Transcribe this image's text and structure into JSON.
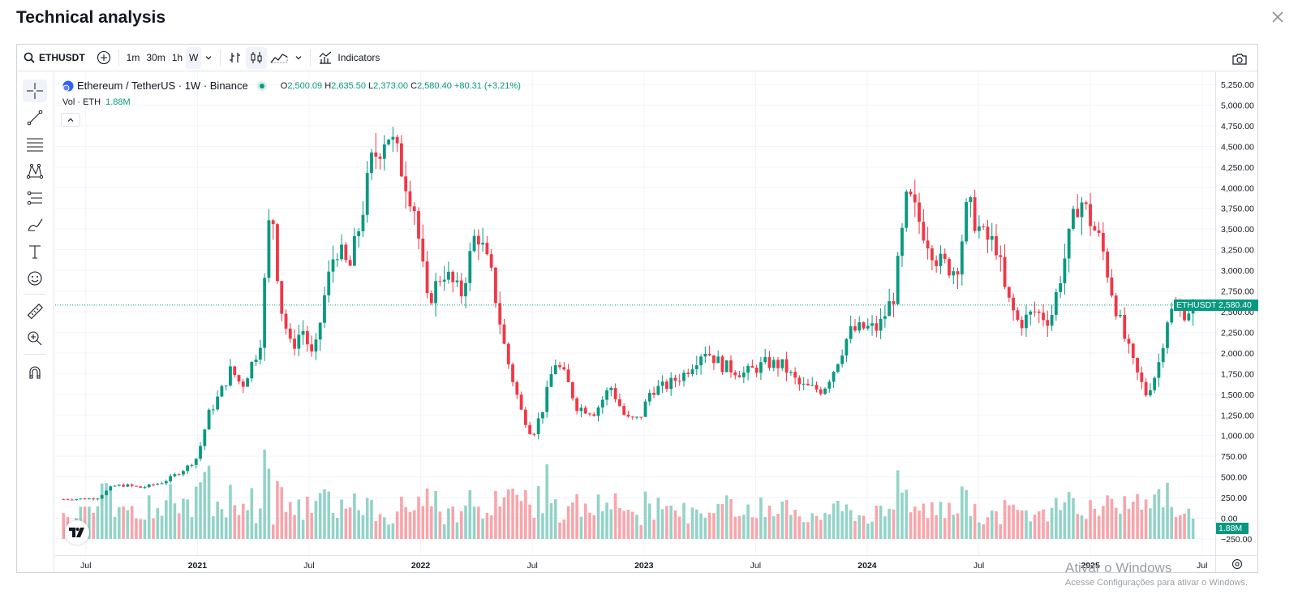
{
  "modal": {
    "title": "Technical analysis"
  },
  "toolbar": {
    "symbol": "ETHUSDT",
    "intervals": [
      "1m",
      "30m",
      "1h",
      "W"
    ],
    "active_interval": "W",
    "indicators_label": "Indicators"
  },
  "left_tools": [
    "crosshair-icon",
    "trend-line-icon",
    "fib-icon",
    "pattern-icon",
    "forecast-icon",
    "brush-icon",
    "text-icon",
    "emoji-icon",
    "ruler-icon",
    "zoom-in-icon",
    "magnet-icon"
  ],
  "legend": {
    "symbol_line": "Ethereum / TetherUS · 1W · Binance",
    "o_label": "O",
    "o_value": "2,500.09",
    "h_label": "H",
    "h_value": "2,635.50",
    "l_label": "L",
    "l_value": "2,373.00",
    "c_label": "C",
    "c_value": "2,580.40",
    "change": "+80.31 (+3.21%)",
    "vol_label": "Vol · ETH",
    "vol_value": "1.88M"
  },
  "price_tag": {
    "symbol": "ETHUSDT",
    "price": "2,580.40"
  },
  "volume_tag": "1.88M",
  "colors": {
    "up": "#089981",
    "down": "#f23645",
    "vol_up": "#93d3c8",
    "vol_down": "#f8a5ab"
  },
  "watermark": {
    "line1": "Ativar o Windows",
    "line2": "Acesse Configurações para ativar o Windows."
  },
  "chart_data": {
    "type": "candlestick",
    "price_axis": [
      "5,250.00",
      "5,000.00",
      "4,750.00",
      "4,500.00",
      "4,250.00",
      "4,000.00",
      "3,750.00",
      "3,500.00",
      "3,250.00",
      "3,000.00",
      "2,750.00",
      "2,500.00",
      "2,250.00",
      "2,000.00",
      "1,750.00",
      "1,500.00",
      "1,250.00",
      "1,000.00",
      "750.00",
      "500.00",
      "250.00",
      "0.00",
      "−250.00"
    ],
    "ylim": [
      -250,
      5250
    ],
    "time_axis": [
      "Jul",
      "2021",
      "Jul",
      "2022",
      "Jul",
      "2023",
      "Jul",
      "2024",
      "Jul",
      "2025",
      "Jul"
    ],
    "time_axis_bold": [
      false,
      true,
      false,
      true,
      false,
      true,
      false,
      true,
      false,
      true,
      false
    ],
    "x_range": [
      "2020-06",
      "2025-07"
    ],
    "weekly_close_keypoints": [
      [
        2020.4,
        230
      ],
      [
        2020.55,
        240
      ],
      [
        2020.62,
        390
      ],
      [
        2020.68,
        400
      ],
      [
        2020.75,
        370
      ],
      [
        2020.85,
        440
      ],
      [
        2020.95,
        610
      ],
      [
        2021.0,
        740
      ],
      [
        2021.05,
        1260
      ],
      [
        2021.1,
        1500
      ],
      [
        2021.15,
        1800
      ],
      [
        2021.2,
        1600
      ],
      [
        2021.28,
        2100
      ],
      [
        2021.33,
        3900
      ],
      [
        2021.37,
        2600
      ],
      [
        2021.42,
        2050
      ],
      [
        2021.47,
        2300
      ],
      [
        2021.52,
        1900
      ],
      [
        2021.57,
        2700
      ],
      [
        2021.62,
        3300
      ],
      [
        2021.68,
        3000
      ],
      [
        2021.73,
        3600
      ],
      [
        2021.78,
        4300
      ],
      [
        2021.85,
        4700
      ],
      [
        2021.92,
        4200
      ],
      [
        2021.97,
        3800
      ],
      [
        2022.03,
        2600
      ],
      [
        2022.1,
        3000
      ],
      [
        2022.18,
        2700
      ],
      [
        2022.25,
        3500
      ],
      [
        2022.32,
        2900
      ],
      [
        2022.38,
        2000
      ],
      [
        2022.45,
        1300
      ],
      [
        2022.5,
        1000
      ],
      [
        2022.55,
        1350
      ],
      [
        2022.6,
        1900
      ],
      [
        2022.65,
        1700
      ],
      [
        2022.7,
        1350
      ],
      [
        2022.78,
        1280
      ],
      [
        2022.85,
        1600
      ],
      [
        2022.92,
        1200
      ],
      [
        2022.98,
        1200
      ],
      [
        2023.03,
        1550
      ],
      [
        2023.1,
        1600
      ],
      [
        2023.18,
        1750
      ],
      [
        2023.27,
        2050
      ],
      [
        2023.35,
        1850
      ],
      [
        2023.45,
        1750
      ],
      [
        2023.55,
        1880
      ],
      [
        2023.62,
        1850
      ],
      [
        2023.7,
        1600
      ],
      [
        2023.8,
        1550
      ],
      [
        2023.85,
        1800
      ],
      [
        2023.92,
        2250
      ],
      [
        2023.98,
        2300
      ],
      [
        2024.05,
        2300
      ],
      [
        2024.12,
        2700
      ],
      [
        2024.18,
        3900
      ],
      [
        2024.25,
        3500
      ],
      [
        2024.32,
        3100
      ],
      [
        2024.4,
        3000
      ],
      [
        2024.45,
        3800
      ],
      [
        2024.52,
        3400
      ],
      [
        2024.58,
        3300
      ],
      [
        2024.62,
        2700
      ],
      [
        2024.68,
        2350
      ],
      [
        2024.75,
        2500
      ],
      [
        2024.82,
        2400
      ],
      [
        2024.88,
        3100
      ],
      [
        2024.95,
        3900
      ],
      [
        2025.0,
        3600
      ],
      [
        2025.05,
        3300
      ],
      [
        2025.1,
        2700
      ],
      [
        2025.15,
        2200
      ],
      [
        2025.2,
        1800
      ],
      [
        2025.25,
        1500
      ],
      [
        2025.3,
        1800
      ],
      [
        2025.35,
        2500
      ],
      [
        2025.42,
        2500
      ],
      [
        2025.47,
        2580
      ]
    ],
    "last_close": 2580.4
  }
}
